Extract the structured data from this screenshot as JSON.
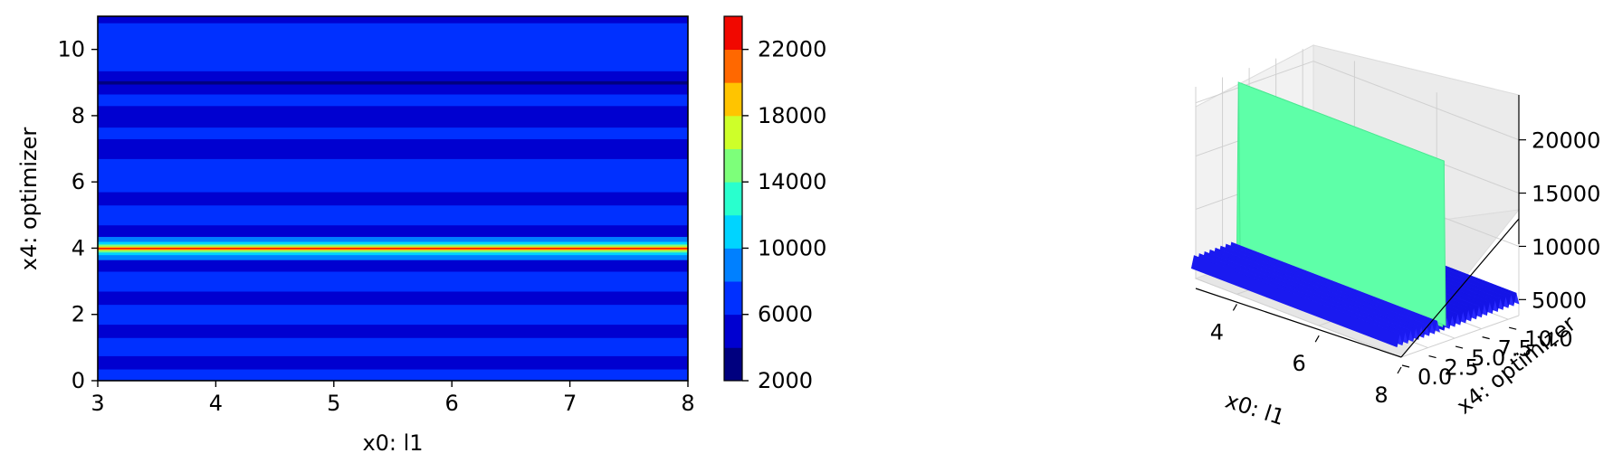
{
  "chart_data": [
    {
      "type": "heatmap",
      "xlabel": "x0: l1",
      "ylabel": "x4: optimizer",
      "xlim": [
        3,
        8
      ],
      "ylim": [
        0,
        11
      ],
      "x_ticks": [
        "3",
        "4",
        "5",
        "6",
        "7",
        "8"
      ],
      "y_ticks": [
        "0",
        "2",
        "4",
        "6",
        "8",
        "10"
      ],
      "colormap": "jet",
      "colorbar": {
        "range": [
          2000,
          24000
        ],
        "levels": [
          2000,
          4000,
          6000,
          8000,
          10000,
          12000,
          14000,
          16000,
          18000,
          20000,
          22000,
          24000
        ],
        "tick_labels": [
          "2000",
          "6000",
          "10000",
          "14000",
          "18000",
          "22000"
        ],
        "colors": [
          "#00007f",
          "#0000d0",
          "#0030ff",
          "#0080ff",
          "#00d4ff",
          "#29ffce",
          "#7dff7a",
          "#ceff29",
          "#ffc400",
          "#ff6800",
          "#f10800",
          "#7f0000"
        ]
      },
      "bands": [
        {
          "y0": 0,
          "y1": 0.35,
          "value": 7000
        },
        {
          "y0": 0.35,
          "y1": 0.75,
          "value": 5000
        },
        {
          "y0": 0.75,
          "y1": 1.3,
          "value": 7000
        },
        {
          "y0": 1.3,
          "y1": 1.7,
          "value": 5000
        },
        {
          "y0": 1.7,
          "y1": 2.3,
          "value": 7000
        },
        {
          "y0": 2.3,
          "y1": 2.7,
          "value": 5000
        },
        {
          "y0": 2.7,
          "y1": 3.3,
          "value": 7000
        },
        {
          "y0": 3.3,
          "y1": 3.65,
          "value": 5000
        },
        {
          "y0": 3.65,
          "y1": 3.8,
          "value": 9000
        },
        {
          "y0": 3.8,
          "y1": 3.88,
          "value": 11000
        },
        {
          "y0": 3.88,
          "y1": 3.94,
          "value": 15000
        },
        {
          "y0": 3.94,
          "y1": 3.98,
          "value": 19000
        },
        {
          "y0": 3.98,
          "y1": 4.02,
          "value": 23000
        },
        {
          "y0": 4.02,
          "y1": 4.06,
          "value": 19000
        },
        {
          "y0": 4.06,
          "y1": 4.12,
          "value": 15000
        },
        {
          "y0": 4.12,
          "y1": 4.2,
          "value": 11000
        },
        {
          "y0": 4.2,
          "y1": 4.35,
          "value": 9000
        },
        {
          "y0": 4.35,
          "y1": 4.7,
          "value": 5000
        },
        {
          "y0": 4.7,
          "y1": 5.3,
          "value": 7000
        },
        {
          "y0": 5.3,
          "y1": 5.7,
          "value": 5000
        },
        {
          "y0": 5.7,
          "y1": 6.7,
          "value": 7000
        },
        {
          "y0": 6.7,
          "y1": 7.3,
          "value": 5000
        },
        {
          "y0": 7.3,
          "y1": 7.65,
          "value": 7000
        },
        {
          "y0": 7.65,
          "y1": 8.3,
          "value": 5000
        },
        {
          "y0": 8.3,
          "y1": 8.65,
          "value": 7000
        },
        {
          "y0": 8.65,
          "y1": 8.95,
          "value": 5000
        },
        {
          "y0": 8.95,
          "y1": 9.05,
          "value": 3000
        },
        {
          "y0": 9.05,
          "y1": 9.35,
          "value": 5000
        },
        {
          "y0": 9.35,
          "y1": 10.8,
          "value": 7000
        },
        {
          "y0": 10.8,
          "y1": 11,
          "value": 5000
        }
      ]
    },
    {
      "type": "surface3d",
      "xlabel": "x0: l1",
      "ylabel": "x4: optimizer",
      "x_ticks": [
        "4",
        "6",
        "8"
      ],
      "y_ticks": [
        "0.0",
        "2.5",
        "5.0",
        "7.5",
        "10.0"
      ],
      "z_ticks": [
        "5000",
        "10000",
        "15000",
        "20000"
      ],
      "xlim": [
        3,
        8
      ],
      "ylim": [
        0,
        11
      ],
      "zlim": [
        3500,
        21500
      ],
      "colormap": "jet",
      "peak_ridge": {
        "y": 4,
        "z": 20500,
        "color": "#55ff9f"
      },
      "base_level": {
        "z": 5000,
        "color": "#1a1aff"
      }
    }
  ]
}
